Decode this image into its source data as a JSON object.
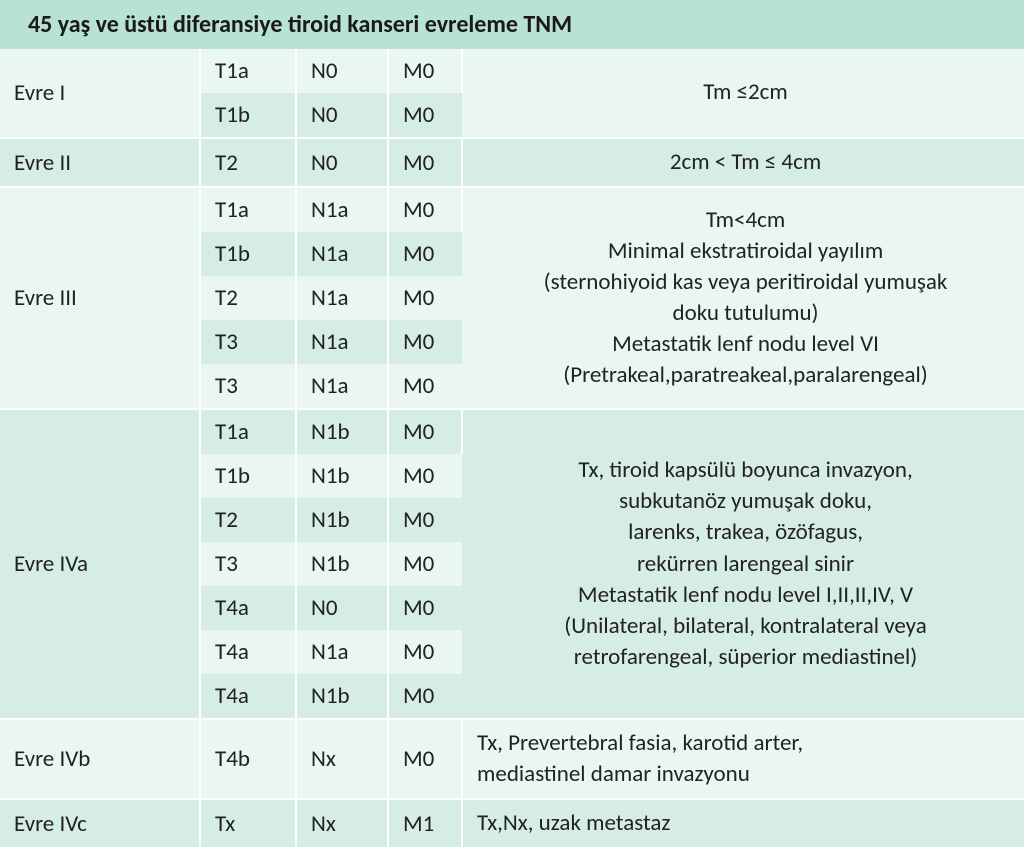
{
  "colors": {
    "header_bg": "#b8e2d1",
    "band_a": "#eaf6f1",
    "band_b": "#d5ede2",
    "stage_text": "#1a4a6e",
    "text": "#222222",
    "separator": "#ffffff"
  },
  "title": "45 yaş ve üstü diferansiye tiroid kanseri evreleme TNM",
  "columns": {
    "stage_w": 200,
    "t_w": 96,
    "n_w": 92,
    "m_w": 74,
    "desc_w": 562
  },
  "groups": [
    {
      "stage": "Evre I",
      "rows": [
        {
          "t": "T1a",
          "n": "N0",
          "m": "M0"
        },
        {
          "t": "T1b",
          "n": "N0",
          "m": "M0"
        }
      ],
      "desc_lines": [
        "Tm  ≤2cm"
      ],
      "desc_align": "center"
    },
    {
      "stage": "Evre II",
      "rows": [
        {
          "t": "T2",
          "n": "N0",
          "m": "M0"
        }
      ],
      "desc_lines": [
        "2cm < Tm ≤ 4cm"
      ],
      "desc_align": "center"
    },
    {
      "stage": "Evre III",
      "rows": [
        {
          "t": "T1a",
          "n": "N1a",
          "m": "M0"
        },
        {
          "t": "T1b",
          "n": "N1a",
          "m": "M0"
        },
        {
          "t": "T2",
          "n": "N1a",
          "m": "M0"
        },
        {
          "t": "T3",
          "n": "N1a",
          "m": "M0"
        },
        {
          "t": "T3",
          "n": "N1a",
          "m": "M0"
        }
      ],
      "desc_lines": [
        "Tm<4cm",
        "Minimal ekstratiroidal yayılım",
        "(sternohiyoid kas veya peritiroidal yumuşak",
        "doku tutulumu)",
        "Metastatik lenf nodu level VI",
        "(Pretrakeal,paratreakeal,paralarengeal)"
      ],
      "desc_align": "center"
    },
    {
      "stage": "Evre IVa",
      "rows": [
        {
          "t": "T1a",
          "n": "N1b",
          "m": "M0"
        },
        {
          "t": "T1b",
          "n": "N1b",
          "m": "M0"
        },
        {
          "t": "T2",
          "n": "N1b",
          "m": "M0"
        },
        {
          "t": "T3",
          "n": "N1b",
          "m": "M0"
        },
        {
          "t": "T4a",
          "n": "N0",
          "m": "M0"
        },
        {
          "t": "T4a",
          "n": "N1a",
          "m": "M0"
        },
        {
          "t": "T4a",
          "n": "N1b",
          "m": "M0"
        }
      ],
      "desc_lines": [
        "Tx, tiroid kapsülü boyunca invazyon,",
        "subkutanöz yumuşak doku,",
        "larenks, trakea, özöfagus,",
        "rekürren larengeal sinir",
        "Metastatik lenf nodu level I,II,II,IV, V",
        "(Unilateral, bilateral, kontralateral veya",
        "retrofarengeal,  süperior mediastinel)"
      ],
      "desc_align": "center"
    },
    {
      "stage": "Evre IVb",
      "rows": [
        {
          "t": "T4b",
          "n": "Nx",
          "m": "M0"
        }
      ],
      "desc_lines": [
        "Tx, Prevertebral fasia, karotid arter,",
        "mediastinel damar invazyonu"
      ],
      "desc_align": "left"
    },
    {
      "stage": "Evre IVc",
      "rows": [
        {
          "t": "Tx",
          "n": "Nx",
          "m": "M1"
        }
      ],
      "desc_lines": [
        "Tx,Nx, uzak metastaz"
      ],
      "desc_align": "left"
    }
  ]
}
